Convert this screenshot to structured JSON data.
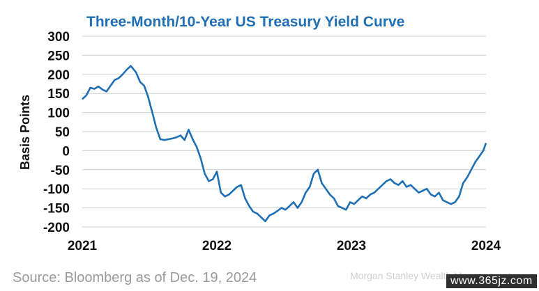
{
  "chart_data": {
    "type": "line",
    "title": "Three-Month/10-Year US Treasury Yield Curve",
    "xlabel": "",
    "ylabel": "Basis Points",
    "x_ticks": [
      "2021",
      "2022",
      "2023",
      "2024"
    ],
    "y_ticks": [
      "300",
      "250",
      "200",
      "150",
      "100",
      "50",
      "0",
      "-50",
      "-100",
      "-150",
      "-200"
    ],
    "xlim": [
      2021.0,
      2024.0
    ],
    "ylim": [
      -200,
      300
    ],
    "grid": true,
    "color": "#1f6fb5",
    "series": [
      {
        "x": [
          2021.0,
          2021.03,
          2021.06,
          2021.09,
          2021.12,
          2021.15,
          2021.18,
          2021.21,
          2021.24,
          2021.27,
          2021.3,
          2021.33,
          2021.36,
          2021.4,
          2021.43,
          2021.46,
          2021.49,
          2021.52,
          2021.55,
          2021.58,
          2021.61,
          2021.64,
          2021.67,
          2021.7,
          2021.73,
          2021.76,
          2021.79,
          2021.82,
          2021.85,
          2021.88,
          2021.91,
          2021.94,
          2021.97,
          2022.0,
          2022.03,
          2022.06,
          2022.09,
          2022.12,
          2022.15,
          2022.18,
          2022.21,
          2022.24,
          2022.27,
          2022.3,
          2022.33,
          2022.36,
          2022.39,
          2022.42,
          2022.45,
          2022.48,
          2022.51,
          2022.54,
          2022.57,
          2022.6,
          2022.63,
          2022.66,
          2022.69,
          2022.72,
          2022.75,
          2022.78,
          2022.81,
          2022.84,
          2022.87,
          2022.9,
          2022.93,
          2022.96,
          2022.99,
          2023.02,
          2023.05,
          2023.08,
          2023.11,
          2023.14,
          2023.17,
          2023.2,
          2023.23,
          2023.26,
          2023.29,
          2023.32,
          2023.35,
          2023.38,
          2023.41,
          2023.44,
          2023.47,
          2023.5,
          2023.53,
          2023.56,
          2023.59,
          2023.62,
          2023.65,
          2023.68,
          2023.71,
          2023.74,
          2023.77,
          2023.8,
          2023.83,
          2023.86,
          2023.89,
          2023.92,
          2023.95,
          2023.98,
          2024.0
        ],
        "y": [
          135,
          145,
          165,
          162,
          168,
          160,
          155,
          170,
          185,
          190,
          200,
          212,
          222,
          205,
          180,
          170,
          140,
          100,
          60,
          30,
          28,
          30,
          32,
          35,
          40,
          28,
          55,
          30,
          10,
          -20,
          -60,
          -80,
          -75,
          -55,
          -110,
          -120,
          -115,
          -105,
          -95,
          -90,
          -125,
          -145,
          -160,
          -165,
          -175,
          -185,
          -170,
          -165,
          -158,
          -150,
          -155,
          -145,
          -135,
          -150,
          -135,
          -110,
          -95,
          -60,
          -50,
          -85,
          -100,
          -115,
          -125,
          -145,
          -150,
          -155,
          -135,
          -140,
          -130,
          -120,
          -125,
          -115,
          -110,
          -100,
          -90,
          -80,
          -75,
          -85,
          -90,
          -80,
          -95,
          -90,
          -100,
          -110,
          -105,
          -100,
          -115,
          -120,
          -110,
          -130,
          -135,
          -140,
          -135,
          -120,
          -85,
          -70,
          -50,
          -30,
          -15,
          0,
          20
        ]
      }
    ]
  },
  "source": "Source: Bloomberg as of Dec. 19, 2024",
  "credit": "Morgan Stanley Wealth Management",
  "watermark": "www.365jz.com"
}
